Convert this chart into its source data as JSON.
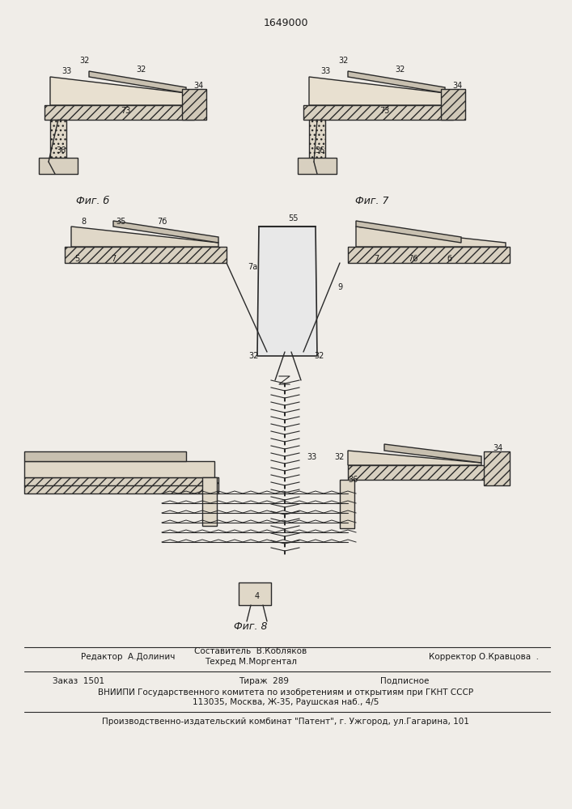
{
  "patent_number": "1649000",
  "bg_color": "#f0ede8",
  "line_color": "#2a2a2a",
  "text_color": "#1a1a1a",
  "footer_line1_left": "Редактор  А.Долинич",
  "footer_line1_center_top": "Составитель  В.Кобляков",
  "footer_line1_center_bot": "Техред М.Моргентал",
  "footer_line1_right": "Корректор О.Кравцова  .",
  "footer_line2_col1": "Заказ  1501",
  "footer_line2_col2": "Тираж  289",
  "footer_line2_col3": "Подписное",
  "footer_line3": "ВНИИПИ Государственного комитета по изобретениям и открытиям при ГКНТ СССР",
  "footer_line4": "113035, Москва, Ж-35, Раушская наб., 4/5",
  "footer_separator": "Производственно-издательский комбинат \"Патент\", г. Ужгород, ул.Гагарина, 101",
  "fig6_label": "Фиг. б",
  "fig7_label": "Фиг. 7",
  "fig8_label": "Фиг. 8"
}
